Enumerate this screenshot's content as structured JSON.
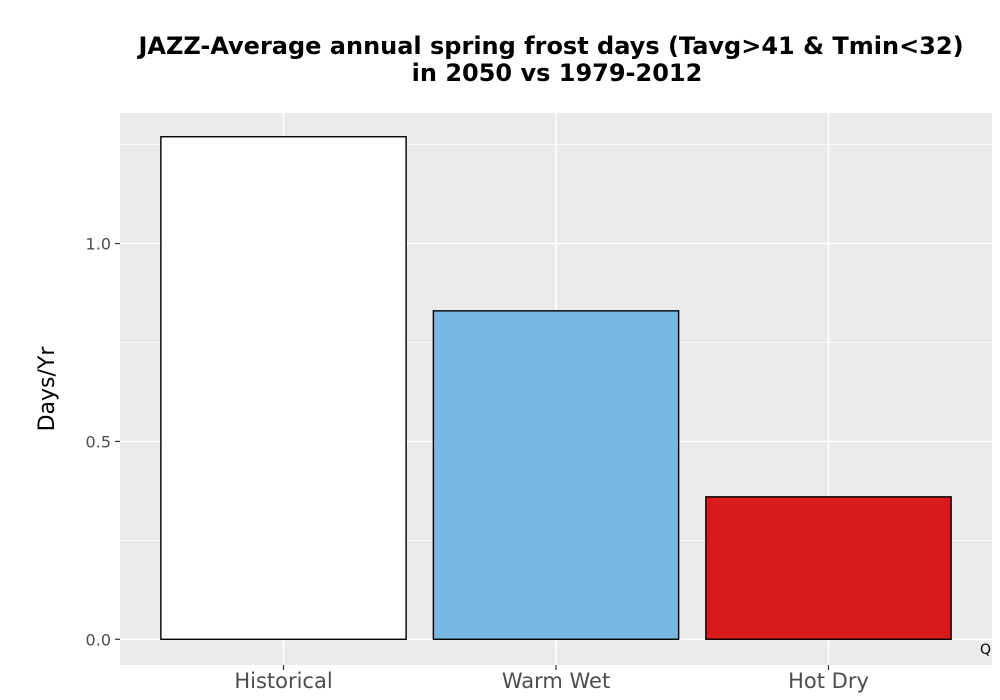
{
  "chart_data": {
    "type": "bar",
    "title": "JAZZ-Average annual spring frost days (Tavg>41 & Tmin<32)",
    "subtitle": "in 2050 vs 1979-2012",
    "xlabel": "",
    "ylabel": "Days/Yr",
    "categories": [
      "Historical",
      "Warm Wet",
      "Hot Dry"
    ],
    "values": [
      1.27,
      0.83,
      0.36
    ],
    "colors": [
      "#ffffff",
      "#78b7e1",
      "#d91a1d"
    ],
    "ylim": [
      -0.065,
      1.33
    ],
    "yticks": [
      0.0,
      0.5,
      1.0
    ],
    "ytick_labels": [
      "0.0",
      "0.5",
      "1.0"
    ],
    "grid": true,
    "legend": "none",
    "panel_background": "#ebebeb",
    "annotation": "Q"
  }
}
